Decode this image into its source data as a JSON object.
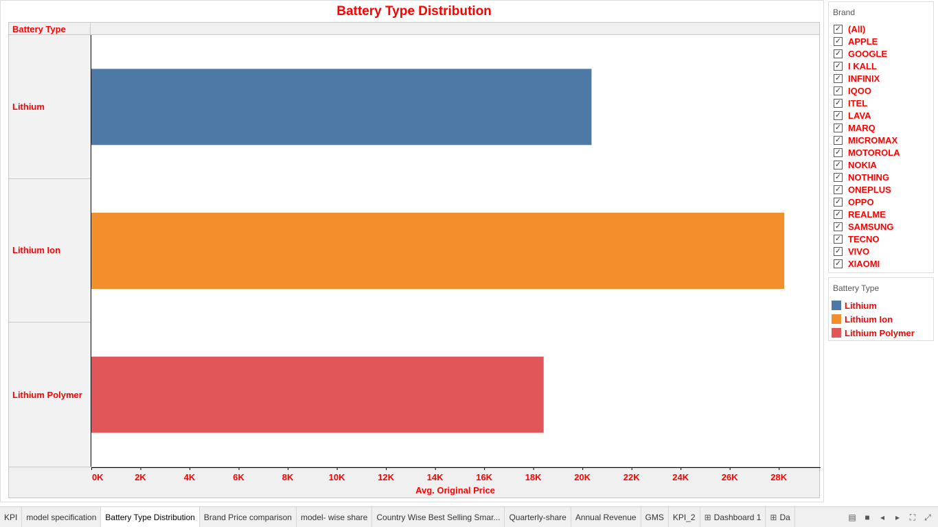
{
  "chart_data": {
    "type": "bar",
    "orientation": "horizontal",
    "title": "Battery Type Distribution",
    "row_header": "Battery Type",
    "categories": [
      "Lithium",
      "Lithium Ion",
      "Lithium Polymer"
    ],
    "values": [
      20400,
      28250,
      18450
    ],
    "colors": [
      "#4e79a7",
      "#f28e2b",
      "#e15759"
    ],
    "xlabel": "Avg. Original Price",
    "xlim": [
      0,
      29700
    ],
    "xticks": [
      0,
      2000,
      4000,
      6000,
      8000,
      10000,
      12000,
      14000,
      16000,
      18000,
      20000,
      22000,
      24000,
      26000,
      28000
    ],
    "xtick_labels": [
      "0K",
      "2K",
      "4K",
      "6K",
      "8K",
      "10K",
      "12K",
      "14K",
      "16K",
      "18K",
      "20K",
      "22K",
      "24K",
      "26K",
      "28K"
    ],
    "grid": false
  },
  "brand_filter": {
    "title": "Brand",
    "items": [
      "(All)",
      "APPLE",
      "GOOGLE",
      "I KALL",
      "INFINIX",
      "IQOO",
      "ITEL",
      "LAVA",
      "MARQ",
      "MICROMAX",
      "MOTOROLA",
      "NOKIA",
      "NOTHING",
      "ONEPLUS",
      "OPPO",
      "REALME",
      "SAMSUNG",
      "TECNO",
      "VIVO",
      "XIAOMI"
    ],
    "checked": true
  },
  "legend": {
    "title": "Battery Type",
    "items": [
      {
        "label": "Lithium",
        "color": "#4e79a7"
      },
      {
        "label": "Lithium Ion",
        "color": "#f28e2b"
      },
      {
        "label": "Lithium Polymer",
        "color": "#e15759"
      }
    ]
  },
  "tabs": {
    "items": [
      {
        "label": "KPI",
        "icon": ""
      },
      {
        "label": "model specification",
        "icon": ""
      },
      {
        "label": "Battery Type Distribution",
        "icon": "",
        "active": true
      },
      {
        "label": "Brand Price comparison",
        "icon": ""
      },
      {
        "label": "model- wise share",
        "icon": ""
      },
      {
        "label": "Country Wise Best Selling Smar...",
        "icon": ""
      },
      {
        "label": "Quarterly-share",
        "icon": ""
      },
      {
        "label": "Annual Revenue",
        "icon": ""
      },
      {
        "label": "GMS",
        "icon": ""
      },
      {
        "label": "KPI_2",
        "icon": ""
      },
      {
        "label": "Dashboard 1",
        "icon": "dashboard-icon"
      },
      {
        "label": "Da",
        "icon": "dashboard-icon"
      }
    ]
  },
  "nav_icons": [
    "filmstrip-view-icon",
    "tab-view-icon",
    "prev-tab-icon",
    "next-tab-icon",
    "fit-screen-icon",
    "fullscreen-icon"
  ]
}
